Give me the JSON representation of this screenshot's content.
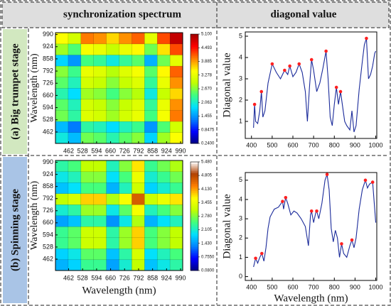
{
  "header": {
    "left": "synchronization spectrum",
    "right": "diagonal value"
  },
  "rows": [
    {
      "label": "(a) Big trumpet stage"
    },
    {
      "label": "(b) Spinning stage"
    }
  ],
  "chart_data": [
    {
      "type": "heatmap",
      "ylabel": "Wavelength (nm)",
      "x": [
        430,
        490,
        550,
        610,
        670,
        730,
        790,
        850,
        910,
        970
      ],
      "y": [
        430,
        490,
        550,
        610,
        670,
        730,
        790,
        850,
        910,
        970
      ],
      "values": [
        [
          2.0,
          1.65,
          2.6,
          2.5,
          2.2,
          2.5,
          2.7,
          1.8,
          2.8,
          3.45
        ],
        [
          1.65,
          1.3,
          2.25,
          2.15,
          1.85,
          2.15,
          2.35,
          1.45,
          2.45,
          3.1
        ],
        [
          2.6,
          2.25,
          3.2,
          3.1,
          2.8,
          3.1,
          3.3,
          2.4,
          3.4,
          4.05
        ],
        [
          2.5,
          2.15,
          3.1,
          3.0,
          2.7,
          3.0,
          3.2,
          2.3,
          3.3,
          3.95
        ],
        [
          2.2,
          1.85,
          2.8,
          2.7,
          2.4,
          2.7,
          2.9,
          2.0,
          3.0,
          3.65
        ],
        [
          2.5,
          2.15,
          3.1,
          3.0,
          2.7,
          3.0,
          3.2,
          2.3,
          3.3,
          3.95
        ],
        [
          2.7,
          2.35,
          3.3,
          3.2,
          2.9,
          3.2,
          3.4,
          2.5,
          3.5,
          4.15
        ],
        [
          1.8,
          1.45,
          2.4,
          2.3,
          2.0,
          2.3,
          2.5,
          1.6,
          2.6,
          3.25
        ],
        [
          2.8,
          2.45,
          3.4,
          3.3,
          3.0,
          3.3,
          3.5,
          2.6,
          3.6,
          4.25
        ],
        [
          3.45,
          3.1,
          4.05,
          3.95,
          3.65,
          3.95,
          4.15,
          3.25,
          4.25,
          4.9
        ]
      ],
      "xlim": [
        400,
        1000
      ],
      "ylim": [
        400,
        1000
      ],
      "xticks": [
        462,
        528,
        594,
        660,
        726,
        792,
        858,
        924,
        990
      ],
      "yticks": [
        462,
        528,
        594,
        660,
        726,
        792,
        858,
        924,
        990
      ],
      "zlim": [
        0.24,
        5.1
      ],
      "colorbar_ticks": [
        {
          "value": 5.1,
          "label": "5.100"
        },
        4.493,
        3.885,
        3.278,
        {
          "value": 2.67,
          "label": "2.670"
        },
        2.063,
        1.455,
        0.8475,
        {
          "value": 0.24,
          "label": "0.2400"
        }
      ],
      "colormap": [
        "#000080",
        "#0000ff",
        "#0080ff",
        "#00e0ff",
        "#40ff80",
        "#c0ff00",
        "#ffff00",
        "#ff8000",
        "#ff0000",
        "#a00000"
      ]
    },
    {
      "type": "line",
      "ylabel": "Diagonal value",
      "x": [
        410,
        415,
        420,
        430,
        440,
        448,
        455,
        465,
        480,
        500,
        520,
        540,
        560,
        575,
        585,
        600,
        615,
        630,
        645,
        660,
        670,
        680,
        690,
        700,
        715,
        730,
        745,
        760,
        770,
        780,
        790,
        800,
        810,
        820,
        830,
        840,
        850,
        860,
        875,
        885,
        895,
        905,
        920,
        935,
        945,
        955,
        965,
        975,
        985,
        995,
        1000
      ],
      "series": [
        {
          "color": "#1a2a9a",
          "values": [
            0.7,
            1.8,
            1.0,
            0.9,
            1.5,
            2.4,
            1.2,
            1.5,
            2.8,
            3.7,
            3.3,
            3.0,
            3.4,
            3.2,
            3.6,
            3.1,
            3.3,
            3.7,
            3.3,
            2.4,
            1.0,
            2.6,
            3.9,
            3.4,
            2.4,
            2.8,
            3.5,
            4.3,
            3.0,
            1.2,
            0.8,
            1.8,
            2.6,
            1.8,
            2.4,
            1.7,
            1.0,
            0.8,
            0.6,
            1.5,
            0.5,
            0.8,
            2.5,
            3.8,
            4.6,
            4.9,
            3.0,
            3.2,
            3.6,
            4.2,
            4.3
          ]
        }
      ],
      "markers": {
        "color": "#ff2020",
        "x": [
          415,
          448,
          500,
          560,
          585,
          630,
          690,
          760,
          810,
          830,
          955
        ],
        "values": [
          1.8,
          2.4,
          3.7,
          3.4,
          3.6,
          3.7,
          3.9,
          4.3,
          2.6,
          2.4,
          4.9
        ]
      },
      "xlim": [
        370,
        1005
      ],
      "ylim": [
        0.2,
        5.2
      ],
      "xticks": [
        400,
        500,
        600,
        700,
        800,
        900,
        1000
      ],
      "yticks": [
        1,
        2,
        3,
        4,
        5
      ]
    },
    {
      "type": "heatmap",
      "xlabel": "Wavelength (nm)",
      "ylabel": "Wavelength (nm)",
      "x": [
        430,
        490,
        550,
        610,
        670,
        730,
        790,
        850,
        910,
        970
      ],
      "y": [
        430,
        490,
        550,
        610,
        670,
        730,
        790,
        850,
        910,
        970
      ],
      "values": [
        [
          1.6,
          1.8,
          2.4,
          2.4,
          1.5,
          2.1,
          3.1,
          1.7,
          2.0,
          2.3
        ],
        [
          1.8,
          2.0,
          2.6,
          2.6,
          1.7,
          2.3,
          3.3,
          1.9,
          2.2,
          2.5
        ],
        [
          2.4,
          2.6,
          3.2,
          3.2,
          2.3,
          2.9,
          3.9,
          2.5,
          2.8,
          3.1
        ],
        [
          2.4,
          2.6,
          3.2,
          3.2,
          2.3,
          2.9,
          3.9,
          2.5,
          2.8,
          3.1
        ],
        [
          1.5,
          1.7,
          2.3,
          2.3,
          1.4,
          2.0,
          3.0,
          1.6,
          1.9,
          2.2
        ],
        [
          2.1,
          2.3,
          2.9,
          2.9,
          2.0,
          2.6,
          3.6,
          2.2,
          2.5,
          2.8
        ],
        [
          3.1,
          3.3,
          3.9,
          3.9,
          3.0,
          3.6,
          4.6,
          3.2,
          3.5,
          3.8
        ],
        [
          1.7,
          1.9,
          2.5,
          2.5,
          1.6,
          2.2,
          3.2,
          1.8,
          2.1,
          2.4
        ],
        [
          2.0,
          2.2,
          2.8,
          2.8,
          1.9,
          2.5,
          3.5,
          2.1,
          2.4,
          2.7
        ],
        [
          2.3,
          2.5,
          3.1,
          3.1,
          2.2,
          2.8,
          3.8,
          2.4,
          2.7,
          3.0
        ]
      ],
      "xlim": [
        400,
        1000
      ],
      "ylim": [
        400,
        1000
      ],
      "xticks": [
        462,
        528,
        594,
        660,
        726,
        792,
        858,
        924,
        990
      ],
      "yticks": [
        462,
        528,
        594,
        660,
        726,
        792,
        858,
        924,
        990
      ],
      "zlim": [
        0.08,
        5.48
      ],
      "colorbar_ticks": [
        {
          "value": 5.48,
          "label": "5.480"
        },
        4.805,
        {
          "value": 4.13,
          "label": "4.130"
        },
        3.455,
        {
          "value": 2.78,
          "label": "2.780"
        },
        2.105,
        {
          "value": 1.43,
          "label": "1.430"
        },
        {
          "value": 0.755,
          "label": "0.7550"
        },
        {
          "value": 0.08,
          "label": "0.0800"
        }
      ],
      "colormap": [
        "#000080",
        "#0000ff",
        "#0080ff",
        "#00e0ff",
        "#40ff80",
        "#c0ff00",
        "#ffff00",
        "#ff8000",
        "#b04000",
        "#ffffff"
      ]
    },
    {
      "type": "line",
      "xlabel": "Wavelength (nm)",
      "ylabel": "Diagonal value",
      "x": [
        410,
        420,
        430,
        440,
        450,
        460,
        470,
        480,
        490,
        510,
        530,
        550,
        555,
        565,
        575,
        590,
        605,
        620,
        640,
        660,
        675,
        685,
        690,
        700,
        710,
        715,
        725,
        740,
        755,
        765,
        775,
        785,
        795,
        805,
        815,
        825,
        835,
        845,
        860,
        875,
        885,
        895,
        905,
        920,
        935,
        950,
        960,
        970,
        985,
        995,
        1000
      ],
      "series": [
        {
          "color": "#1a2a9a",
          "values": [
            0.5,
            0.95,
            0.7,
            1.0,
            1.2,
            0.8,
            1.5,
            2.5,
            3.1,
            3.5,
            3.6,
            3.9,
            3.5,
            4.1,
            3.8,
            3.2,
            3.4,
            3.3,
            3.0,
            2.6,
            1.6,
            3.2,
            3.4,
            2.8,
            3.3,
            3.4,
            3.0,
            3.8,
            5.0,
            5.3,
            4.5,
            2.5,
            1.8,
            2.4,
            2.0,
            1.0,
            1.7,
            1.2,
            1.0,
            1.6,
            1.9,
            1.5,
            2.0,
            3.5,
            4.5,
            5.0,
            4.6,
            4.8,
            4.9,
            3.5,
            2.8
          ]
        }
      ],
      "markers": {
        "color": "#ff2020",
        "x": [
          420,
          450,
          550,
          565,
          690,
          715,
          765,
          835,
          885,
          950,
          985
        ],
        "values": [
          0.95,
          1.2,
          3.9,
          4.1,
          3.4,
          3.4,
          5.3,
          1.7,
          1.9,
          5.0,
          4.9
        ]
      },
      "xlim": [
        370,
        1005
      ],
      "ylim": [
        -0.2,
        5.4
      ],
      "xticks": [
        400,
        500,
        600,
        700,
        800,
        900,
        1000
      ],
      "yticks": [
        0,
        1,
        2,
        3,
        4,
        5
      ]
    }
  ]
}
